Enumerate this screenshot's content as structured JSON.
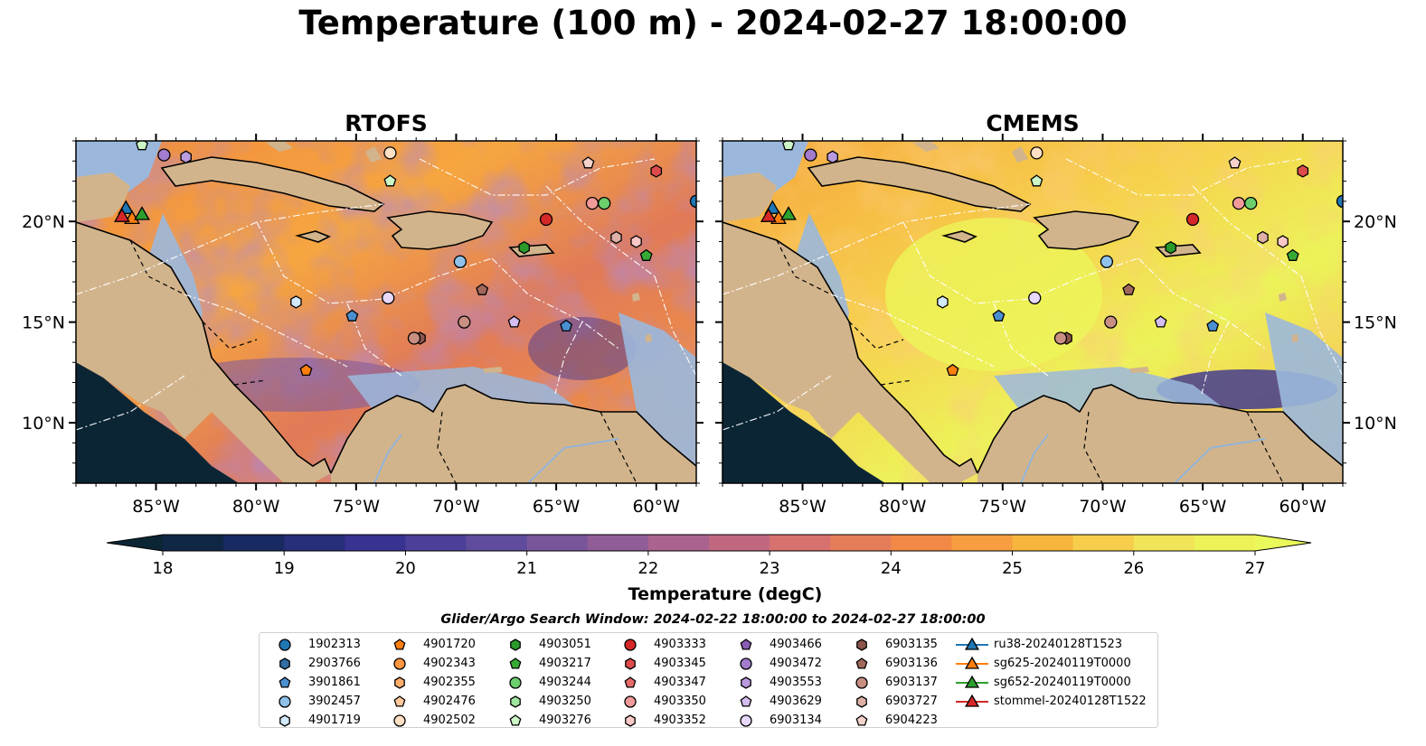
{
  "title": "Temperature (100 m) - 2024-02-27 18:00:00",
  "panels": [
    {
      "title": "RTOFS",
      "scheme": "warm"
    },
    {
      "title": "CMEMS",
      "scheme": "hot"
    }
  ],
  "map": {
    "lon_range": [
      -89,
      -58
    ],
    "lat_range": [
      7,
      24
    ],
    "lon_ticks": [
      "85°W",
      "80°W",
      "75°W",
      "70°W",
      "65°W",
      "60°W"
    ],
    "lat_ticks": [
      "20°N",
      "15°N",
      "10°N"
    ],
    "colors": {
      "land": "#d2b48c",
      "shelf": "#9bb8dc",
      "deep": "#0b2535"
    }
  },
  "colorbar": {
    "label": "Temperature (degC)",
    "ticks": [
      "18",
      "19",
      "20",
      "21",
      "22",
      "23",
      "24",
      "25",
      "26",
      "27"
    ],
    "range": [
      18,
      27
    ],
    "colors": [
      "#0b2535",
      "#1b2b6a",
      "#3a3293",
      "#5e4b9c",
      "#8a5c98",
      "#b6648a",
      "#dd7468",
      "#f38a44",
      "#f8b23c",
      "#f4e057",
      "#eaf95a"
    ]
  },
  "legend": {
    "title": "Glider/Argo Search Window: 2024-02-22 18:00:00 to 2024-02-27 18:00:00",
    "columns": [
      [
        {
          "label": "1902313",
          "marker": "circle",
          "color": "#1f77b4"
        },
        {
          "label": "2903766",
          "marker": "hexagon",
          "color": "#2f6fa4"
        },
        {
          "label": "3901861",
          "marker": "pentagon",
          "color": "#4a8fd0"
        },
        {
          "label": "3902457",
          "marker": "circle",
          "color": "#8fc1ea"
        },
        {
          "label": "4901719",
          "marker": "hexagon",
          "color": "#d2e8fb"
        }
      ],
      [
        {
          "label": "4901720",
          "marker": "pentagon",
          "color": "#ff7f0e"
        },
        {
          "label": "4902343",
          "marker": "circle",
          "color": "#ff9640"
        },
        {
          "label": "4902355",
          "marker": "hexagon",
          "color": "#ffad6b"
        },
        {
          "label": "4902476",
          "marker": "pentagon",
          "color": "#ffc99c"
        },
        {
          "label": "4902502",
          "marker": "circle",
          "color": "#ffe0c4"
        }
      ],
      [
        {
          "label": "4903051",
          "marker": "hexagon",
          "color": "#2a9a2a"
        },
        {
          "label": "4903217",
          "marker": "pentagon",
          "color": "#35ab35"
        },
        {
          "label": "4903244",
          "marker": "circle",
          "color": "#6ccf6c"
        },
        {
          "label": "4903250",
          "marker": "hexagon",
          "color": "#9fe59f"
        },
        {
          "label": "4903276",
          "marker": "pentagon",
          "color": "#ccf6c6"
        }
      ],
      [
        {
          "label": "4903333",
          "marker": "circle",
          "color": "#d62728"
        },
        {
          "label": "4903345",
          "marker": "hexagon",
          "color": "#de4b4b"
        },
        {
          "label": "4903347",
          "marker": "pentagon",
          "color": "#e86a6a"
        },
        {
          "label": "4903350",
          "marker": "circle",
          "color": "#f29a9a"
        },
        {
          "label": "4903352",
          "marker": "hexagon",
          "color": "#fbc7c7"
        }
      ],
      [
        {
          "label": "4903466",
          "marker": "pentagon",
          "color": "#8a5bb3"
        },
        {
          "label": "4903472",
          "marker": "circle",
          "color": "#a37ccd"
        },
        {
          "label": "4903553",
          "marker": "hexagon",
          "color": "#ba9bdf"
        },
        {
          "label": "4903629",
          "marker": "pentagon",
          "color": "#d4bdf0"
        },
        {
          "label": "6903134",
          "marker": "circle",
          "color": "#e8d8fb"
        }
      ],
      [
        {
          "label": "6903135",
          "marker": "hexagon",
          "color": "#8c564b"
        },
        {
          "label": "6903136",
          "marker": "pentagon",
          "color": "#a0685c"
        },
        {
          "label": "6903137",
          "marker": "circle",
          "color": "#c98f83"
        },
        {
          "label": "6903727",
          "marker": "hexagon",
          "color": "#dfb0a6"
        },
        {
          "label": "6904223",
          "marker": "pentagon",
          "color": "#f4d2cb"
        }
      ],
      [
        {
          "label": "ru38-20240128T1523",
          "marker": "triangle",
          "color": "#1f77b4"
        },
        {
          "label": "sg625-20240119T0000",
          "marker": "triangle",
          "color": "#ff7f0e"
        },
        {
          "label": "sg652-20240119T0000",
          "marker": "triangle",
          "color": "#2ca02c"
        },
        {
          "label": "stommel-20240128T1522",
          "marker": "triangle",
          "color": "#d62728"
        }
      ]
    ]
  },
  "observations": [
    {
      "id": "1902313",
      "lon": -58.0,
      "lat": 21.0
    },
    {
      "id": "3902457",
      "lon": -69.8,
      "lat": 18.0
    },
    {
      "id": "3901861",
      "lon": -75.2,
      "lat": 15.3
    },
    {
      "id": "3901861",
      "lon": -64.5,
      "lat": 14.8
    },
    {
      "id": "4901719",
      "lon": -78.0,
      "lat": 16.0
    },
    {
      "id": "4901720",
      "lon": -77.5,
      "lat": 12.6
    },
    {
      "id": "4902502",
      "lon": -73.3,
      "lat": 23.4
    },
    {
      "id": "4903051",
      "lon": -66.6,
      "lat": 18.7
    },
    {
      "id": "4903217",
      "lon": -60.5,
      "lat": 18.3
    },
    {
      "id": "4903244",
      "lon": -62.6,
      "lat": 20.9
    },
    {
      "id": "4903276",
      "lon": -73.3,
      "lat": 22.0
    },
    {
      "id": "4903276",
      "lon": -85.7,
      "lat": 23.8
    },
    {
      "id": "4903333",
      "lon": -65.5,
      "lat": 20.1
    },
    {
      "id": "4903345",
      "lon": -60.0,
      "lat": 22.5
    },
    {
      "id": "4903350",
      "lon": -63.2,
      "lat": 20.9
    },
    {
      "id": "4903352",
      "lon": -61.0,
      "lat": 19.0
    },
    {
      "id": "4903472",
      "lon": -84.6,
      "lat": 23.3
    },
    {
      "id": "4903553",
      "lon": -83.5,
      "lat": 23.2
    },
    {
      "id": "4903629",
      "lon": -67.1,
      "lat": 15.0
    },
    {
      "id": "6903134",
      "lon": -73.4,
      "lat": 16.2
    },
    {
      "id": "6903135",
      "lon": -71.8,
      "lat": 14.2
    },
    {
      "id": "6903136",
      "lon": -68.7,
      "lat": 16.6
    },
    {
      "id": "6903137",
      "lon": -69.6,
      "lat": 15.0
    },
    {
      "id": "6903137",
      "lon": -72.1,
      "lat": 14.2
    },
    {
      "id": "6903727",
      "lon": -62.0,
      "lat": 19.2
    },
    {
      "id": "6904223",
      "lon": -63.4,
      "lat": 22.9
    },
    {
      "id": "ru38-20240128T1523",
      "lon": -86.5,
      "lat": 20.6
    },
    {
      "id": "sg625-20240119T0000",
      "lon": -86.2,
      "lat": 20.1
    },
    {
      "id": "sg652-20240119T0000",
      "lon": -85.7,
      "lat": 20.3
    },
    {
      "id": "stommel-20240128T1522",
      "lon": -86.7,
      "lat": 20.2
    }
  ]
}
